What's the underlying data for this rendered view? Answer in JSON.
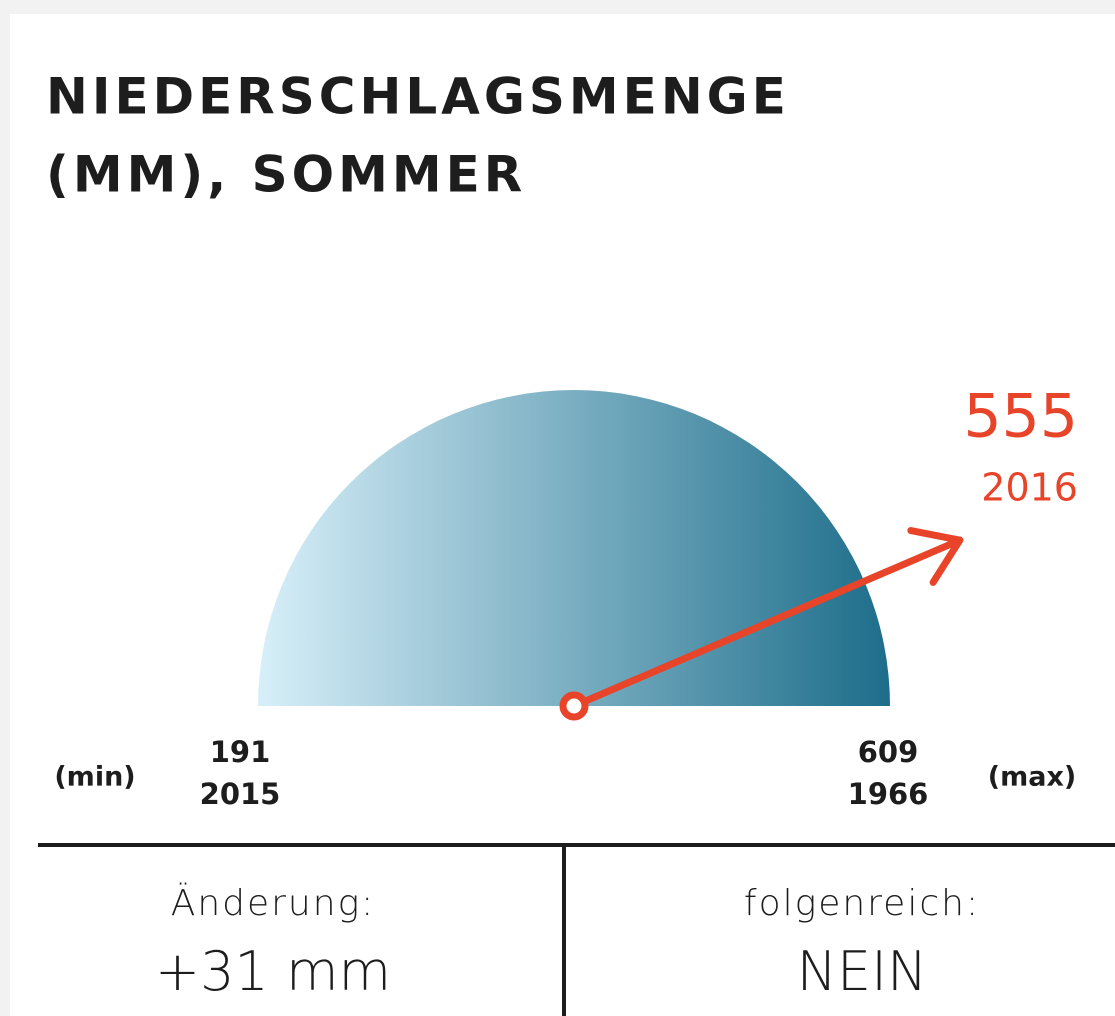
{
  "chart_data": {
    "type": "gauge",
    "title": [
      "NIEDERSCHLAGSMENGE",
      "(MM), SOMMER"
    ],
    "min": 191,
    "min_year": "2015",
    "min_label": "(min)",
    "max": 609,
    "max_year": "1966",
    "max_label": "(max)",
    "value": 555,
    "value_year": "2016",
    "color": "#e8442a",
    "gradient": [
      "#d7eff9",
      "#1d6d8a"
    ]
  },
  "footer": [
    {
      "label": "Änderung:",
      "value": "+31 mm"
    },
    {
      "label": "folgenreich:",
      "value": "NEIN"
    }
  ]
}
